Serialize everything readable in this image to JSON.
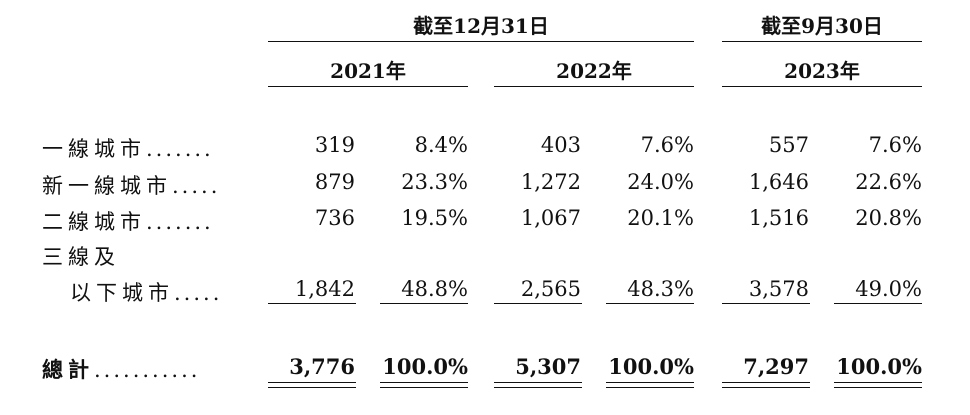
{
  "header": {
    "period_a": "截至12月31日",
    "period_b": "截至9月30日",
    "years": [
      "2021年",
      "2022年",
      "2023年"
    ]
  },
  "rows": [
    {
      "label": "一線城市",
      "dots": ".......",
      "values": [
        "319",
        "8.4%",
        "403",
        "7.6%",
        "557",
        "7.6%"
      ]
    },
    {
      "label": "新一線城市",
      "dots": ".....",
      "values": [
        "879",
        "23.3%",
        "1,272",
        "24.0%",
        "1,646",
        "22.6%"
      ]
    },
    {
      "label": "二線城市",
      "dots": ".......",
      "values": [
        "736",
        "19.5%",
        "1,067",
        "20.1%",
        "1,516",
        "20.8%"
      ]
    },
    {
      "label": "三線及",
      "dots": "",
      "values": []
    },
    {
      "label": "以下城市",
      "dots": ".....",
      "values": [
        "1,842",
        "48.8%",
        "2,565",
        "48.3%",
        "3,578",
        "49.0%"
      ]
    }
  ],
  "total": {
    "label": "總計",
    "dots": "...........",
    "values": [
      "3,776",
      "100.0%",
      "5,307",
      "100.0%",
      "7,297",
      "100.0%"
    ]
  }
}
